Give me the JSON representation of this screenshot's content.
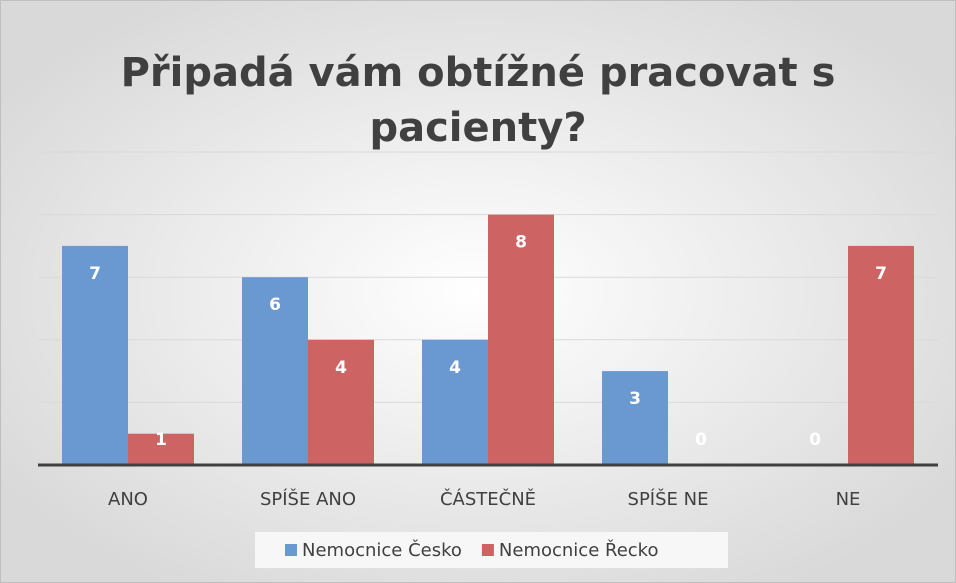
{
  "chart_data": {
    "type": "bar",
    "title": "Připadá vám obtížné pracovat s pacienty?",
    "categories": [
      "ANO",
      "SPÍŠE ANO",
      "ČÁSTEČNĚ",
      "SPÍŠE NE",
      "NE"
    ],
    "series": [
      {
        "name": "Nemocnice Česko",
        "color": "#6a98d0",
        "values": [
          7,
          6,
          4,
          3,
          0
        ]
      },
      {
        "name": "Nemocnice Řecko",
        "color": "#cd6463",
        "values": [
          1,
          4,
          8,
          0,
          7
        ]
      }
    ],
    "ylim": [
      0,
      10
    ],
    "yticks": [
      0,
      2,
      4,
      6,
      8,
      10
    ],
    "grid": true,
    "legend": "bottom"
  }
}
